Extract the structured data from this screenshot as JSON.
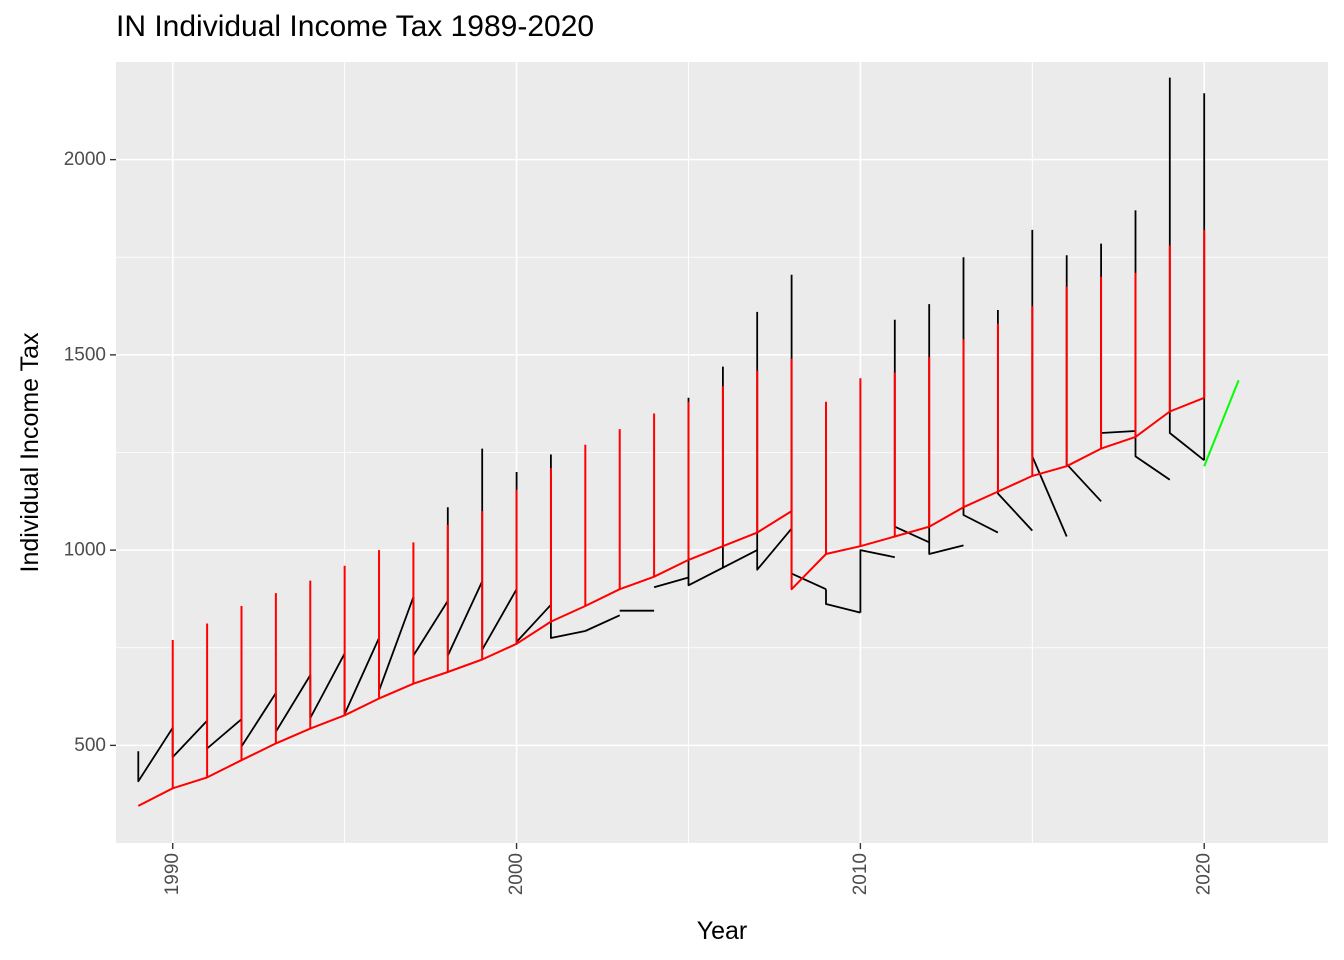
{
  "chart_data": {
    "type": "line",
    "title": "IN Individual Income Tax 1989-2020",
    "xlabel": "Year",
    "ylabel": "Individual Income Tax",
    "xlim": [
      1988.35,
      2023.6
    ],
    "ylim": [
      250,
      2250
    ],
    "x_ticks": [
      1990,
      2000,
      2010,
      2020
    ],
    "y_ticks": [
      500,
      1000,
      1500,
      2000
    ],
    "x_tick_labels": [
      "1990",
      "2000",
      "2010",
      "2020"
    ],
    "y_tick_labels": [
      "500",
      "1000",
      "1500",
      "2000"
    ],
    "grid": true,
    "legend": "none",
    "colors": {
      "panel_bg": "#ebebeb",
      "grid": "#ffffff",
      "actual": "#000000",
      "fitted": "#ff0000",
      "forecast": "#00ff00"
    },
    "series": [
      {
        "role": "actual-paths",
        "color": "#000000",
        "segments": [
          [
            [
              1989,
              485
            ],
            [
              1989,
              408
            ],
            [
              1990,
              545
            ]
          ],
          [
            [
              1990,
              545
            ],
            [
              1990,
              470
            ],
            [
              1991,
              563
            ]
          ],
          [
            [
              1991,
              563
            ],
            [
              1991,
              492
            ],
            [
              1992,
              567
            ]
          ],
          [
            [
              1992,
              567
            ],
            [
              1992,
              497
            ],
            [
              1993,
              634
            ]
          ],
          [
            [
              1993,
              634
            ],
            [
              1993,
              535
            ],
            [
              1994,
              680
            ]
          ],
          [
            [
              1994,
              680
            ],
            [
              1994,
              570
            ],
            [
              1995,
              735
            ]
          ],
          [
            [
              1995,
              735
            ],
            [
              1995,
              580
            ],
            [
              1996,
              775
            ]
          ],
          [
            [
              1996,
              775
            ],
            [
              1996,
              640
            ],
            [
              1997,
              880
            ]
          ],
          [
            [
              1997,
              880
            ],
            [
              1997,
              730
            ],
            [
              1998,
              870
            ]
          ],
          [
            [
              1998,
              1110
            ],
            [
              1998,
              730
            ],
            [
              1999,
              920
            ]
          ],
          [
            [
              1999,
              1260
            ],
            [
              1999,
              745
            ],
            [
              2000,
              900
            ]
          ],
          [
            [
              2000,
              1200
            ],
            [
              2000,
              765
            ],
            [
              2001,
              860
            ]
          ],
          [
            [
              2001,
              1245
            ],
            [
              2001,
              775
            ],
            [
              2002,
              793
            ]
          ],
          [
            [
              2002,
              793
            ],
            [
              2002,
              793
            ],
            [
              2003,
              833
            ]
          ],
          [
            [
              2003,
              845
            ],
            [
              2004,
              845
            ]
          ],
          [
            [
              2004,
              905
            ],
            [
              2005,
              930
            ]
          ],
          [
            [
              2005,
              1390
            ],
            [
              2005,
              910
            ],
            [
              2006,
              955
            ]
          ],
          [
            [
              2006,
              1470
            ],
            [
              2006,
              955
            ],
            [
              2007,
              1000
            ]
          ],
          [
            [
              2007,
              1610
            ],
            [
              2007,
              950
            ],
            [
              2008,
              1055
            ]
          ],
          [
            [
              2008,
              1705
            ],
            [
              2008,
              940
            ],
            [
              2009,
              900
            ]
          ],
          [
            [
              2009,
              900
            ],
            [
              2009,
              862
            ],
            [
              2010,
              840
            ]
          ],
          [
            [
              2010,
              840
            ],
            [
              2010,
              1000
            ],
            [
              2011,
              982
            ]
          ],
          [
            [
              2011,
              1590
            ],
            [
              2011,
              1060
            ],
            [
              2012,
              1020
            ]
          ],
          [
            [
              2012,
              1630
            ],
            [
              2012,
              990
            ],
            [
              2013,
              1012
            ]
          ],
          [
            [
              2013,
              1750
            ],
            [
              2013,
              1090
            ],
            [
              2014,
              1045
            ]
          ],
          [
            [
              2014,
              1615
            ],
            [
              2014,
              1145
            ],
            [
              2015,
              1050
            ]
          ],
          [
            [
              2015,
              1820
            ],
            [
              2015,
              1240
            ],
            [
              2016,
              1035
            ]
          ],
          [
            [
              2016,
              1755
            ],
            [
              2016,
              1220
            ],
            [
              2017,
              1125
            ]
          ],
          [
            [
              2017,
              1785
            ],
            [
              2017,
              1300
            ],
            [
              2018,
              1305
            ]
          ],
          [
            [
              2018,
              1870
            ],
            [
              2018,
              1240
            ],
            [
              2019,
              1180
            ]
          ],
          [
            [
              2019,
              2210
            ],
            [
              2019,
              1300
            ],
            [
              2020,
              1230
            ]
          ],
          [
            [
              2020,
              2170
            ],
            [
              2020,
              1230
            ]
          ]
        ]
      },
      {
        "role": "fitted-trend",
        "color": "#ff0000",
        "points": [
          [
            1989,
            345
          ],
          [
            1990,
            390
          ],
          [
            1991,
            418
          ],
          [
            1992,
            462
          ],
          [
            1993,
            505
          ],
          [
            1994,
            543
          ],
          [
            1995,
            577
          ],
          [
            1996,
            620
          ],
          [
            1997,
            658
          ],
          [
            1998,
            688
          ],
          [
            1999,
            720
          ],
          [
            2000,
            760
          ],
          [
            2001,
            817
          ],
          [
            2002,
            857
          ],
          [
            2003,
            900
          ],
          [
            2004,
            932
          ],
          [
            2005,
            975
          ],
          [
            2006,
            1010
          ],
          [
            2007,
            1045
          ],
          [
            2008,
            1100
          ],
          [
            2008,
            900
          ],
          [
            2009,
            990
          ],
          [
            2010,
            1010
          ],
          [
            2011,
            1035
          ],
          [
            2012,
            1060
          ],
          [
            2013,
            1110
          ],
          [
            2014,
            1150
          ],
          [
            2015,
            1190
          ],
          [
            2016,
            1215
          ],
          [
            2017,
            1260
          ],
          [
            2018,
            1290
          ],
          [
            2019,
            1355
          ],
          [
            2020,
            1390
          ]
        ]
      },
      {
        "role": "fitted-spikes",
        "color": "#ff0000",
        "points": [
          [
            1990,
            770
          ],
          [
            1991,
            812
          ],
          [
            1992,
            857
          ],
          [
            1993,
            890
          ],
          [
            1994,
            922
          ],
          [
            1995,
            960
          ],
          [
            1996,
            1000
          ],
          [
            1997,
            1020
          ],
          [
            1998,
            1065
          ],
          [
            1999,
            1100
          ],
          [
            2000,
            1155
          ],
          [
            2001,
            1210
          ],
          [
            2002,
            1270
          ],
          [
            2003,
            1310
          ],
          [
            2004,
            1350
          ],
          [
            2005,
            1380
          ],
          [
            2006,
            1420
          ],
          [
            2007,
            1460
          ],
          [
            2008,
            1490
          ],
          [
            2009,
            1380
          ],
          [
            2010,
            1440
          ],
          [
            2011,
            1455
          ],
          [
            2012,
            1495
          ],
          [
            2013,
            1540
          ],
          [
            2014,
            1580
          ],
          [
            2015,
            1625
          ],
          [
            2016,
            1675
          ],
          [
            2017,
            1700
          ],
          [
            2018,
            1710
          ],
          [
            2019,
            1780
          ],
          [
            2020,
            1820
          ]
        ]
      },
      {
        "role": "forecast",
        "color": "#00ff00",
        "points": [
          [
            2020,
            1215
          ],
          [
            2021,
            1435
          ]
        ]
      }
    ]
  }
}
